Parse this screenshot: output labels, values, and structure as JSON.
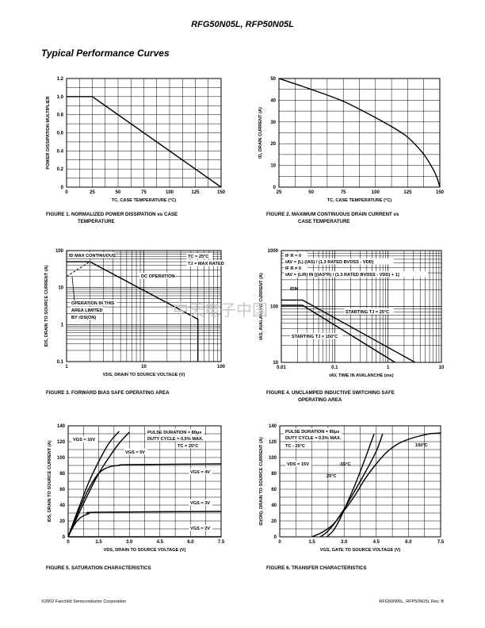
{
  "header": {
    "title": "RFG50N05L, RFP50N05L"
  },
  "section_title": "Typical Performance Curves",
  "watermark": "中天电子中国",
  "footer": {
    "left": "©2002 Fairchild Semiconductor Corporation",
    "right": "RFG50N05L, RFP50N05L Rev. B"
  },
  "figures": [
    {
      "caption": [
        "FIGURE 1.  NORMALIZED POWER DISSIPATION vs CASE",
        "TEMPERATURE"
      ]
    },
    {
      "caption": [
        "FIGURE 2.  MAXIMUM CONTINUOUS DRAIN CURRENT vs",
        "CASE TEMPERATURE"
      ]
    },
    {
      "caption": [
        "FIGURE 3.  FORWARD BIAS SAFE OPERATING AREA"
      ]
    },
    {
      "caption": [
        "FIGURE 4.  UNCLAMPED INDUCTIVE SWITCHING SAFE",
        "OPERATING AREA"
      ]
    },
    {
      "caption": [
        "FIGURE 5.  SATURATION CHARACTERISTICS"
      ]
    },
    {
      "caption": [
        "FIGURE 6.  TRANSFER CHARACTERISTICS"
      ]
    }
  ],
  "chart_data": [
    {
      "type": "line",
      "title": "Normalized Power Dissipation vs Case Temperature",
      "xlabel": "TC, CASE TEMPERATURE (°C)",
      "ylabel": "POWER DISSIPATION MULTIPLIER",
      "xlim": [
        0,
        150
      ],
      "ylim": [
        0,
        1.2
      ],
      "xticks": [
        0,
        25,
        50,
        75,
        100,
        125,
        150
      ],
      "yticks": [
        0,
        0.2,
        0.4,
        0.6,
        0.8,
        1.0,
        1.2
      ],
      "series": [
        {
          "name": "multiplier",
          "x": [
            0,
            25,
            150
          ],
          "y": [
            1.0,
            1.0,
            0
          ]
        }
      ]
    },
    {
      "type": "line",
      "title": "Maximum Continuous Drain Current vs Case Temperature",
      "xlabel": "TC, CASE TEMPERATURE (°C)",
      "ylabel": "ID, DRAIN CURRENT (A)",
      "xlim": [
        25,
        150
      ],
      "ylim": [
        0,
        50
      ],
      "xticks": [
        25,
        50,
        75,
        100,
        125,
        150
      ],
      "yticks": [
        0,
        10,
        20,
        30,
        40,
        50
      ],
      "series": [
        {
          "name": "ID",
          "x": [
            25,
            50,
            75,
            100,
            115,
            125,
            135,
            140,
            145,
            148,
            150
          ],
          "y": [
            50,
            45,
            39.5,
            32,
            27,
            23,
            17,
            13,
            8,
            4,
            0
          ]
        }
      ]
    },
    {
      "type": "line",
      "scale": "log-log",
      "title": "Forward Bias Safe Operating Area",
      "xlabel": "VDS, DRAIN TO SOURCE VOLTAGE (V)",
      "ylabel": "IDS, DRAIN TO SOURCE CURRENT (A)",
      "xlim": [
        1,
        100
      ],
      "ylim": [
        0.1,
        100
      ],
      "xticks": [
        1,
        10,
        100
      ],
      "yticks": [
        0.1,
        1,
        10,
        100
      ],
      "series": [
        {
          "name": "ID MAX CONTINUOUS",
          "x": [
            1,
            2
          ],
          "y": [
            50,
            50
          ]
        },
        {
          "name": "DC OPERATION",
          "x": [
            2,
            50,
            50
          ],
          "y": [
            50,
            1.4,
            0.1
          ]
        },
        {
          "name": "LIMITED BY rDS(ON)",
          "x": [
            1,
            2
          ],
          "y": [
            20,
            50
          ],
          "style": "dashed"
        }
      ],
      "annotations": [
        "ID MAX CONTINUOUS",
        "TC = 25°C",
        "TJ = MAX RATED",
        "DC OPERATION",
        "OPERATION IN THIS",
        "AREA LIMITED",
        "BY rDS(ON)"
      ]
    },
    {
      "type": "line",
      "scale": "log-log",
      "title": "Unclamped Inductive Switching Safe Operating Area",
      "xlabel": "tAV, TIME IN AVALANCHE (ms)",
      "ylabel": "IAS, AVALANCHE CURRENT (A)",
      "xlim": [
        0.01,
        10
      ],
      "ylim": [
        10,
        1000
      ],
      "xticks": [
        0.01,
        0.1,
        1,
        10
      ],
      "yticks": [
        10,
        100,
        1000
      ],
      "series": [
        {
          "name": "STARTING TJ = 25°C",
          "x": [
            0.01,
            0.025,
            3.2
          ],
          "y": [
            130,
            130,
            10
          ]
        },
        {
          "name": "STARTING TJ = 150°C",
          "x": [
            0.01,
            0.025,
            1.35
          ],
          "y": [
            105,
            105,
            10
          ]
        }
      ],
      "annotations": [
        "IF R = 0",
        "tAV = (L) (IAS) / (1.3 RATED BVDSS - VDD)",
        "IF R ≠ 0",
        "tAV = (L/R) IN [(IAS*R) / (1.3 RATED BVDSS - VDD) + 1]",
        "IDM"
      ]
    },
    {
      "type": "line",
      "title": "Saturation Characteristics",
      "xlabel": "VDS, DRAIN TO SOURCE VOLTAGE (V)",
      "ylabel": "IDS, DRAIN TO SOURCE CURRENT (A)",
      "xlim": [
        0,
        7.5
      ],
      "ylim": [
        0,
        140
      ],
      "xticks": [
        0,
        1.5,
        3.0,
        4.5,
        6.0,
        7.5
      ],
      "yticks": [
        0,
        20,
        40,
        60,
        80,
        100,
        120,
        140
      ],
      "series": [
        {
          "name": "VGS = 10V",
          "x": [
            0,
            0.5,
            1.0,
            1.5,
            2.0,
            2.5
          ],
          "y": [
            0,
            35,
            68,
            95,
            118,
            133
          ]
        },
        {
          "name": "VGS = 5V",
          "x": [
            0,
            0.5,
            1.0,
            1.5,
            2.0,
            2.5,
            3.0
          ],
          "y": [
            0,
            28,
            55,
            80,
            100,
            118,
            132
          ]
        },
        {
          "name": "VGS = 4V",
          "x": [
            0,
            0.5,
            1.0,
            1.5,
            2.0,
            2.5,
            3.0,
            7.5
          ],
          "y": [
            0,
            32,
            60,
            80,
            88,
            90,
            91,
            92
          ]
        },
        {
          "name": "VGS = 3V",
          "x": [
            0,
            0.3,
            0.6,
            1.0,
            1.5,
            7.5
          ],
          "y": [
            0,
            15,
            24,
            29,
            31,
            32
          ]
        },
        {
          "name": "VGS = 2V",
          "x": [
            0,
            7.5
          ],
          "y": [
            0,
            0
          ]
        }
      ],
      "annotations": [
        "PULSE DURATION = 80μs",
        "DUTY CYCLE = 0.5% MAX.",
        "TC = 25°C"
      ]
    },
    {
      "type": "line",
      "title": "Transfer Characteristics",
      "xlabel": "VGS, GATE TO SOURCE VOLTAGE (V)",
      "ylabel": "ID(ON), DRAIN TO SOURCE CURRENT (A)",
      "xlim": [
        0,
        7.5
      ],
      "ylim": [
        0,
        140
      ],
      "xticks": [
        0,
        1.5,
        3.0,
        4.5,
        6.0,
        7.5
      ],
      "yticks": [
        0,
        20,
        40,
        60,
        80,
        100,
        120,
        140
      ],
      "series": [
        {
          "name": "-55°C",
          "x": [
            2.2,
            2.5,
            2.8,
            3.0,
            3.5,
            4.0,
            4.4
          ],
          "y": [
            0,
            8,
            22,
            34,
            65,
            100,
            130
          ]
        },
        {
          "name": "25°C",
          "x": [
            1.9,
            2.2,
            2.5,
            3.0,
            3.5,
            4.0,
            4.5,
            4.8
          ],
          "y": [
            0,
            6,
            15,
            35,
            58,
            82,
            108,
            130
          ]
        },
        {
          "name": "150°C",
          "x": [
            1.5,
            2.0,
            2.5,
            3.0,
            3.5,
            4.0,
            4.5,
            5.0,
            5.5,
            6.0,
            6.5,
            7.0,
            7.5
          ],
          "y": [
            0,
            6,
            16,
            33,
            52,
            74,
            92,
            107,
            117,
            123,
            127,
            130,
            131
          ]
        }
      ],
      "annotations": [
        "PULSE DURATION = 80μs",
        "DUTY CYCLE = 0.5% MAX.",
        "TC - 25°C",
        "VDS = 15V",
        "-55°C",
        "25°C",
        "150°C"
      ]
    }
  ]
}
